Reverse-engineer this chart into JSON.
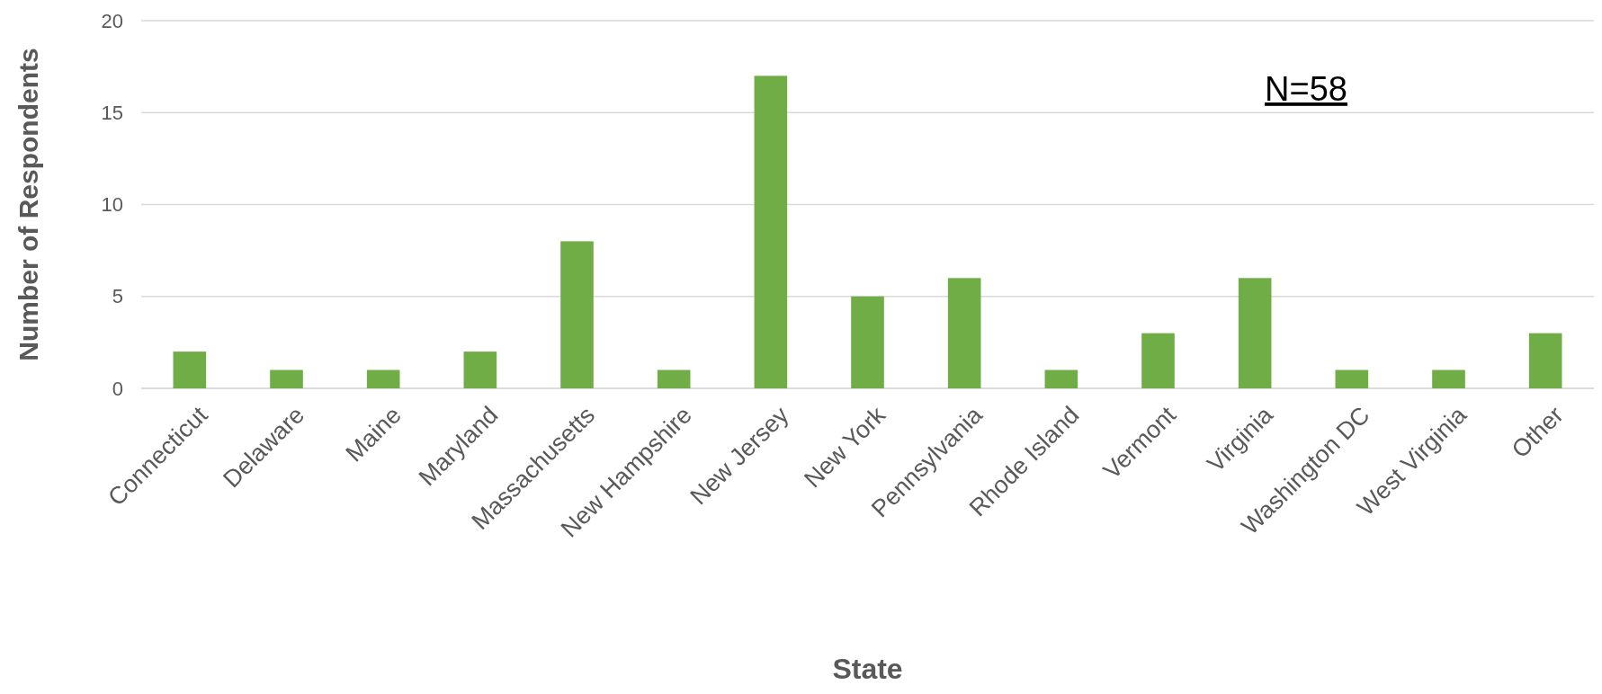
{
  "chart_data": {
    "type": "bar",
    "xlabel": "State",
    "ylabel": "Number of Respondents",
    "categories": [
      "Connecticut",
      "Delaware",
      "Maine",
      "Maryland",
      "Massachusetts",
      "New Hampshire",
      "New Jersey",
      "New York",
      "Pennsylvania",
      "Rhode Island",
      "Vermont",
      "Virginia",
      "Washington DC",
      "West Virginia",
      "Other"
    ],
    "values": [
      2,
      1,
      1,
      2,
      8,
      1,
      17,
      5,
      6,
      1,
      3,
      6,
      1,
      1,
      3
    ],
    "color": "#70ad47",
    "ylim": [
      0,
      20
    ],
    "yticks": [
      0,
      5,
      10,
      15,
      20
    ],
    "grid": "y",
    "annotations": [
      "N=58"
    ]
  }
}
